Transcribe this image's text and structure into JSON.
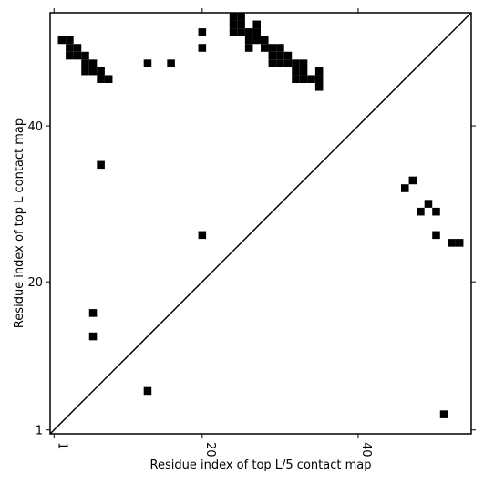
{
  "chart_data": {
    "type": "scatter",
    "marker": "square",
    "xlabel": "Residue index of top L/5 contact map",
    "ylabel": "Residue index of top L contact map",
    "xlim": [
      0.5,
      54.5
    ],
    "ylim": [
      0.5,
      54.5
    ],
    "xticks": [
      1,
      20,
      40
    ],
    "yticks": [
      1,
      20,
      40
    ],
    "diagonal": true,
    "series": [
      {
        "color": "#000000",
        "x": [
          51,
          13,
          6,
          6,
          20,
          7,
          46,
          47,
          49,
          48,
          50,
          50,
          52,
          53,
          20,
          20,
          13,
          16,
          2,
          3,
          3,
          4,
          3,
          4,
          5,
          5,
          6,
          5,
          6,
          7,
          7,
          8,
          24,
          25,
          24,
          25,
          27,
          24,
          25,
          26,
          27,
          26,
          27,
          28,
          26,
          28,
          29,
          30,
          29,
          30,
          31,
          29,
          30,
          31,
          32,
          33,
          32,
          33,
          35,
          32,
          33,
          34,
          35,
          35
        ],
        "y": [
          3,
          6,
          13,
          16,
          26,
          35,
          32,
          33,
          30,
          29,
          29,
          26,
          25,
          25,
          52,
          50,
          48,
          48,
          51,
          51,
          50,
          50,
          49,
          49,
          49,
          48,
          48,
          47,
          47,
          47,
          46,
          46,
          54,
          54,
          53,
          53,
          53,
          52,
          52,
          52,
          52,
          51,
          51,
          51,
          50,
          50,
          50,
          50,
          49,
          49,
          49,
          48,
          48,
          48,
          48,
          48,
          47,
          47,
          47,
          46,
          46,
          46,
          46,
          45
        ]
      }
    ]
  }
}
